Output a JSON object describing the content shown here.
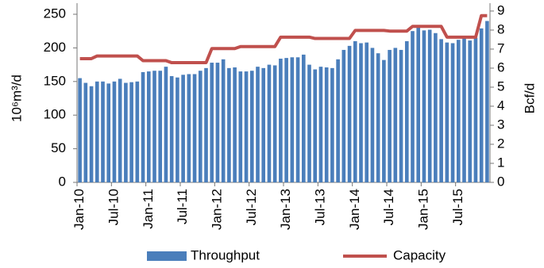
{
  "chart_data": {
    "type": "bar-line",
    "ylabel": "10⁶m³/d",
    "y2label": "Bcf/d",
    "categories": [
      "Jan-10",
      null,
      null,
      null,
      null,
      null,
      "Jul-10",
      null,
      null,
      null,
      null,
      null,
      "Jan-11",
      null,
      null,
      null,
      null,
      null,
      "Jul-11",
      null,
      null,
      null,
      null,
      null,
      "Jan-12",
      null,
      null,
      null,
      null,
      null,
      "Jul-12",
      null,
      null,
      null,
      null,
      null,
      "Jan-13",
      null,
      null,
      null,
      null,
      null,
      "Jul-13",
      null,
      null,
      null,
      null,
      null,
      "Jan-14",
      null,
      null,
      null,
      null,
      null,
      "Jul-14",
      null,
      null,
      null,
      null,
      null,
      "Jan-15",
      null,
      null,
      null,
      null,
      null,
      "Jul-15",
      null,
      null,
      null,
      null,
      null
    ],
    "series": [
      {
        "name": "Throughput",
        "kind": "bar",
        "color": "#4a7ebb",
        "values": [
          155,
          148,
          143,
          150,
          150,
          147,
          150,
          154,
          148,
          149,
          150,
          164,
          165,
          166,
          166,
          172,
          158,
          156,
          160,
          161,
          161,
          166,
          170,
          178,
          178,
          183,
          170,
          171,
          165,
          165,
          166,
          172,
          170,
          175,
          174,
          184,
          185,
          186,
          186,
          190,
          175,
          168,
          172,
          171,
          170,
          183,
          197,
          203,
          210,
          207,
          208,
          200,
          192,
          182,
          197,
          200,
          197,
          210,
          225,
          230,
          226,
          227,
          222,
          213,
          208,
          207,
          212,
          214,
          211,
          215,
          229,
          240
        ]
      },
      {
        "name": "Capacity",
        "kind": "line",
        "color": "#c0504d",
        "values": [
          184,
          184,
          184,
          188,
          188,
          188,
          188,
          188,
          188,
          188,
          188,
          181,
          181,
          181,
          181,
          181,
          178,
          178,
          178,
          178,
          178,
          178,
          178,
          199,
          199,
          199,
          199,
          199,
          202,
          202,
          202,
          202,
          202,
          202,
          202,
          216,
          216,
          216,
          216,
          216,
          216,
          214,
          214,
          214,
          214,
          214,
          214,
          214,
          226,
          226,
          226,
          226,
          226,
          226,
          225,
          225,
          225,
          225,
          232,
          232,
          232,
          232,
          232,
          232,
          216,
          216,
          216,
          216,
          216,
          216,
          248,
          248
        ]
      }
    ],
    "ylim": [
      0,
      250
    ],
    "yticks": [
      0,
      50,
      100,
      150,
      200,
      250
    ],
    "y2lim": [
      0,
      8.83
    ],
    "y2ticks": [
      0,
      1,
      2,
      3,
      4,
      5,
      6,
      7,
      8,
      9
    ],
    "legend": "bottom"
  }
}
